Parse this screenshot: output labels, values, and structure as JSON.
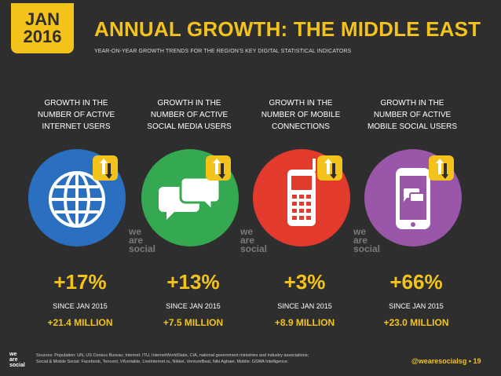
{
  "badge": {
    "month": "JAN",
    "year": "2016"
  },
  "header": {
    "title": "ANNUAL GROWTH: THE MIDDLE EAST",
    "subtitle": "YEAR-ON-YEAR GROWTH TRENDS FOR THE REGION'S KEY DIGITAL STATISTICAL INDICATORS"
  },
  "colors": {
    "background": "#2e2e2e",
    "accent": "#f3c31b",
    "internet": "#2a6fc0",
    "social_media": "#35a852",
    "mobile": "#e23a2c",
    "mobile_social": "#9a56a8"
  },
  "columns": [
    {
      "heading_l1": "GROWTH IN THE",
      "heading_l2": "NUMBER OF ACTIVE",
      "heading_l3": "INTERNET USERS",
      "icon": "globe-icon",
      "percent": "+17%",
      "since": "SINCE JAN 2015",
      "absolute": "+21.4 MILLION"
    },
    {
      "heading_l1": "GROWTH IN THE",
      "heading_l2": "NUMBER OF ACTIVE",
      "heading_l3": "SOCIAL MEDIA USERS",
      "icon": "chat-bubbles-icon",
      "percent": "+13%",
      "since": "SINCE JAN 2015",
      "absolute": "+7.5 MILLION"
    },
    {
      "heading_l1": "GROWTH IN THE",
      "heading_l2": "NUMBER OF MOBILE",
      "heading_l3": "CONNECTIONS",
      "icon": "mobile-phone-icon",
      "percent": "+3%",
      "since": "SINCE JAN 2015",
      "absolute": "+8.9 MILLION"
    },
    {
      "heading_l1": "GROWTH IN THE",
      "heading_l2": "NUMBER OF ACTIVE",
      "heading_l3": "MOBILE SOCIAL USERS",
      "icon": "smartphone-chat-icon",
      "percent": "+66%",
      "since": "SINCE JAN 2015",
      "absolute": "+23.0 MILLION"
    }
  ],
  "watermark": {
    "l1": "we",
    "l2": "are",
    "l3": "social"
  },
  "footer": {
    "logo_l1": "we",
    "logo_l2": "are",
    "logo_l3": "social",
    "sources_l1": "Sources: Population: UN, US Census Bureau; Internet: ITU, InternetWorldStats, CIA, national government ministries and industry associations;",
    "sources_l2": "Social & Mobile Social: Facebook, Tencent, VKontakte, LiveInternet.ru, Nikkei, VentureBeat, Niki Aghaei; Mobile: GSMA Intelligence.",
    "handle": "@wearesocialsg",
    "page": "19"
  }
}
